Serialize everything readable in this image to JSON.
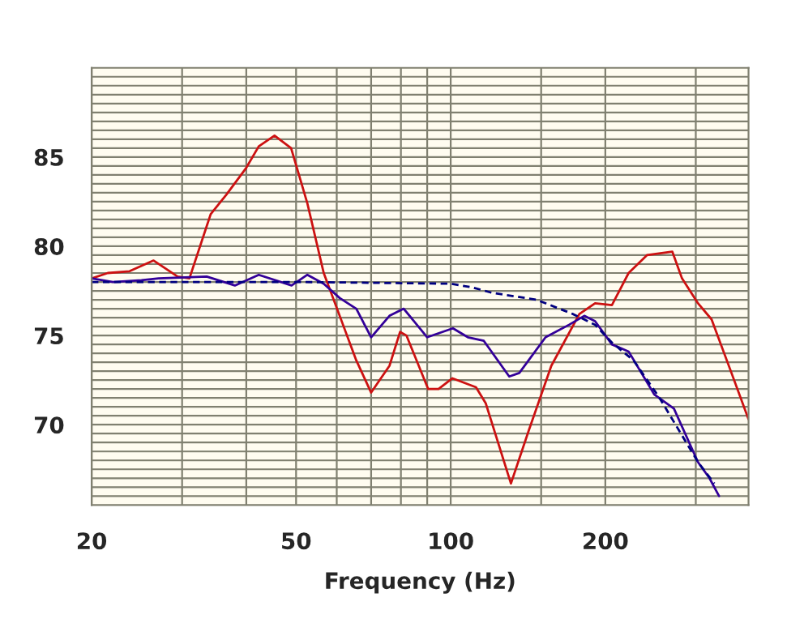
{
  "chart_data": {
    "type": "line",
    "xlabel": "Frequency (Hz)",
    "log": "x",
    "grid": true,
    "legend": false,
    "xlim": [
      20,
      380
    ],
    "ylim": [
      65.5,
      90
    ],
    "xticks": [
      20,
      {
        "value": 30,
        "label": null
      },
      {
        "value": 40,
        "label": null
      },
      50,
      {
        "value": 60,
        "label": null
      },
      {
        "value": 70,
        "label": null
      },
      {
        "value": 80,
        "label": null
      },
      {
        "value": 90,
        "label": null
      },
      100,
      {
        "value": 150,
        "label": null
      },
      200,
      {
        "value": 300,
        "label": null
      }
    ],
    "yticks": [
      {
        "value": 66,
        "label": null
      },
      {
        "value": 66.5,
        "label": null
      },
      {
        "value": 67,
        "label": null
      },
      {
        "value": 67.5,
        "label": null
      },
      {
        "value": 68,
        "label": null
      },
      {
        "value": 68.5,
        "label": null
      },
      {
        "value": 69,
        "label": null
      },
      {
        "value": 69.5,
        "label": null
      },
      70,
      {
        "value": 70.5,
        "label": null
      },
      {
        "value": 71,
        "label": null
      },
      {
        "value": 71.5,
        "label": null
      },
      {
        "value": 72,
        "label": null
      },
      {
        "value": 72.5,
        "label": null
      },
      {
        "value": 73,
        "label": null
      },
      {
        "value": 73.5,
        "label": null
      },
      {
        "value": 74,
        "label": null
      },
      {
        "value": 74.5,
        "label": null
      },
      75,
      {
        "value": 75.5,
        "label": null
      },
      {
        "value": 76,
        "label": null
      },
      {
        "value": 76.5,
        "label": null
      },
      {
        "value": 77,
        "label": null
      },
      {
        "value": 77.5,
        "label": null
      },
      {
        "value": 78,
        "label": null
      },
      {
        "value": 78.5,
        "label": null
      },
      {
        "value": 79,
        "label": null
      },
      {
        "value": 79.5,
        "label": null
      },
      80,
      {
        "value": 80.5,
        "label": null
      },
      {
        "value": 81,
        "label": null
      },
      {
        "value": 81.5,
        "label": null
      },
      {
        "value": 82,
        "label": null
      },
      {
        "value": 82.5,
        "label": null
      },
      {
        "value": 83,
        "label": null
      },
      {
        "value": 83.5,
        "label": null
      },
      {
        "value": 84,
        "label": null
      },
      {
        "value": 84.5,
        "label": null
      },
      85,
      {
        "value": 85.5,
        "label": null
      },
      {
        "value": 86,
        "label": null
      },
      {
        "value": 86.5,
        "label": null
      },
      {
        "value": 87,
        "label": null
      },
      {
        "value": 87.5,
        "label": null
      },
      {
        "value": 88,
        "label": null
      },
      {
        "value": 88.5,
        "label": null
      },
      {
        "value": 89,
        "label": null
      },
      {
        "value": 89.5,
        "label": null
      }
    ],
    "series": [
      {
        "color": "#cc1111",
        "line_style": "solid",
        "x": [
          20,
          21.5,
          23.7,
          26.4,
          29.4,
          31,
          34.1,
          36.6,
          40,
          42.3,
          45.4,
          48.9,
          52.6,
          56.6,
          60.8,
          65.5,
          70,
          76,
          79.7,
          82,
          90.4,
          94.7,
          100.8,
          112,
          117,
          131,
          142,
          157,
          178,
          191,
          206,
          222,
          241,
          270,
          282,
          303,
          322,
          351,
          380
        ],
        "values": [
          78.2,
          78.5,
          78.6,
          79.2,
          78.3,
          78.2,
          81.8,
          82.9,
          84.4,
          85.6,
          86.2,
          85.5,
          82.4,
          78.5,
          76.1,
          73.6,
          71.8,
          73.3,
          75.2,
          75.0,
          72.0,
          72.0,
          72.6,
          72.1,
          71.2,
          66.7,
          69.7,
          73.3,
          76.2,
          76.8,
          76.7,
          78.5,
          79.5,
          79.7,
          78.2,
          76.8,
          75.9,
          73.0,
          70.3
        ]
      },
      {
        "color": "#330099",
        "line_style": "solid",
        "x": [
          20,
          22,
          25,
          27,
          33.5,
          38,
          42.3,
          49,
          52.6,
          56.6,
          60.8,
          65.5,
          70,
          76,
          81,
          90,
          101,
          108,
          116,
          130,
          136,
          153,
          170,
          182,
          191,
          206,
          222,
          249,
          272,
          303,
          319,
          333
        ],
        "values": [
          78.2,
          78.0,
          78.1,
          78.2,
          78.3,
          77.8,
          78.4,
          77.8,
          78.4,
          77.9,
          77.1,
          76.5,
          74.9,
          76.1,
          76.5,
          74.9,
          75.4,
          74.9,
          74.7,
          72.7,
          72.9,
          74.9,
          75.6,
          76.1,
          75.8,
          74.5,
          74.1,
          71.7,
          70.9,
          67.9,
          67.0,
          66.0
        ]
      },
      {
        "color": "#000080",
        "line_style": "dashed",
        "x": [
          20,
          50,
          100,
          110,
          120,
          147,
          173,
          191,
          206,
          227,
          255,
          303,
          326
        ],
        "values": [
          78.0,
          78.0,
          77.9,
          77.7,
          77.4,
          77.0,
          76.2,
          75.6,
          74.6,
          73.6,
          71.5,
          67.9,
          66.7
        ]
      }
    ]
  }
}
